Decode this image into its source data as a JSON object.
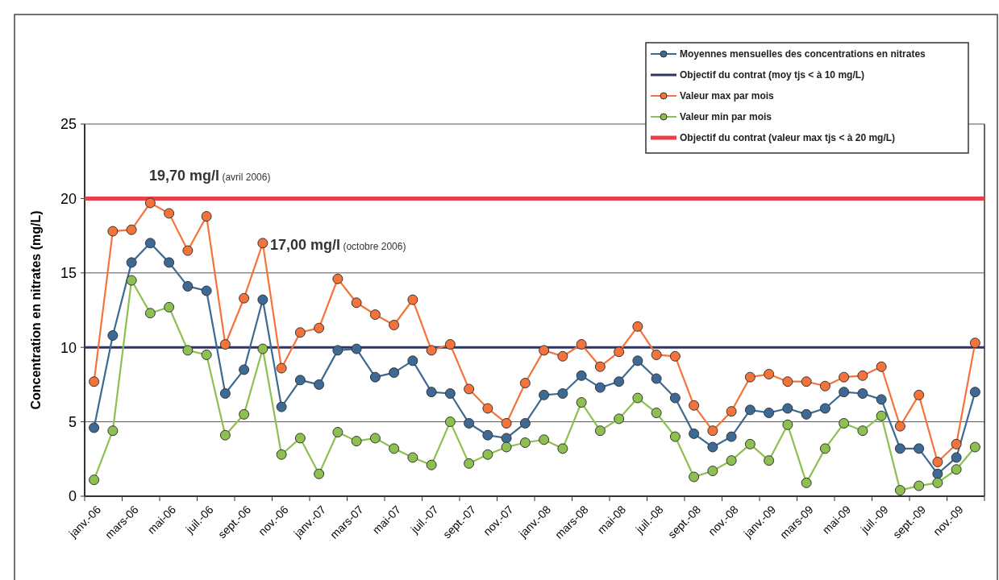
{
  "chart_data": {
    "type": "line",
    "ylabel": "Concentration en nitrates (mg/L)",
    "categories": [
      "janv.-06",
      null,
      "mars-06",
      null,
      "mai-06",
      null,
      "juil.-06",
      null,
      "sept.-06",
      null,
      "nov.-06",
      null,
      "janv.-07",
      null,
      "mars-07",
      null,
      "mai-07",
      null,
      "juil.-07",
      null,
      "sept.-07",
      null,
      "nov.-07",
      null,
      "janv.-08",
      null,
      "mars-08",
      null,
      "mai-08",
      null,
      "juil.-08",
      null,
      "sept.-08",
      null,
      "nov.-08",
      null,
      "janv.-09",
      null,
      "mars-09",
      null,
      "mai-09",
      null,
      "juil.-09",
      null,
      "sept.-09",
      null,
      "nov.-09",
      null
    ],
    "series": [
      {
        "name": "Moyennes mensuelles des concentrations en nitrates",
        "color": "#3c6a94",
        "values": [
          4.6,
          10.8,
          15.7,
          17.0,
          15.7,
          14.1,
          13.8,
          6.9,
          8.5,
          13.2,
          6.0,
          7.8,
          7.5,
          9.8,
          9.9,
          8.0,
          8.3,
          9.1,
          7.0,
          6.9,
          4.9,
          4.1,
          3.9,
          4.9,
          6.8,
          6.9,
          8.1,
          7.3,
          7.7,
          9.1,
          7.9,
          6.6,
          4.2,
          3.3,
          4.0,
          5.8,
          5.6,
          5.9,
          5.5,
          5.9,
          7.0,
          6.9,
          6.5,
          3.2,
          3.2,
          1.5,
          2.6,
          7.0
        ]
      },
      {
        "name": "Valeur max par mois",
        "color": "#f4733a",
        "values": [
          7.7,
          17.8,
          17.9,
          19.7,
          19.0,
          16.5,
          18.8,
          10.2,
          13.3,
          17.0,
          8.6,
          11.0,
          11.3,
          14.6,
          13.0,
          12.2,
          11.5,
          13.2,
          9.8,
          10.2,
          7.2,
          5.9,
          4.9,
          7.6,
          9.8,
          9.4,
          10.2,
          8.7,
          9.7,
          11.4,
          9.5,
          9.4,
          6.1,
          4.4,
          5.7,
          8.0,
          8.2,
          7.7,
          7.7,
          7.4,
          8.0,
          8.1,
          8.7,
          4.7,
          6.8,
          2.3,
          3.5,
          10.3
        ]
      },
      {
        "name": "Valeur min par mois",
        "color": "#8dc050",
        "values": [
          1.1,
          4.4,
          14.5,
          12.3,
          12.7,
          9.8,
          9.5,
          4.1,
          5.5,
          9.9,
          2.8,
          3.9,
          1.5,
          4.3,
          3.7,
          3.9,
          3.2,
          2.6,
          2.1,
          5.0,
          2.2,
          2.8,
          3.3,
          3.6,
          3.8,
          3.2,
          6.3,
          4.4,
          5.2,
          6.6,
          5.6,
          4.0,
          1.3,
          1.7,
          2.4,
          3.5,
          2.4,
          4.8,
          0.9,
          3.2,
          4.9,
          4.4,
          5.4,
          0.4,
          0.7,
          0.9,
          1.8,
          3.3
        ]
      }
    ],
    "ref_lines": [
      {
        "axis": "y",
        "value": 10,
        "label": "Objectif du contrat (moy tjs < à 10 mg/L)",
        "color": "#2e3560"
      },
      {
        "axis": "y",
        "value": 20,
        "label": "Objectif du contrat (valeur max tjs < à 20 mg/L)",
        "color": "#e8404a"
      }
    ],
    "annotations": [
      "19,70 mg/l (avril 2006)",
      "17,00 mg/l (octobre 2006)"
    ],
    "ylim": [
      0,
      25
    ],
    "yticks": [
      0,
      5,
      10,
      15,
      20,
      25
    ],
    "grid": "y",
    "legend": "top right",
    "marker": "circle",
    "line_style": "solid"
  }
}
